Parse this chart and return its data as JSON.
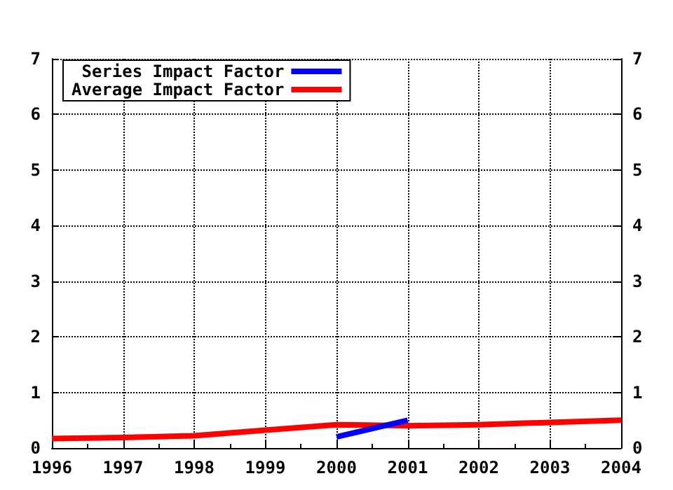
{
  "chart_data": {
    "type": "line",
    "x": [
      1996,
      1997,
      1998,
      1999,
      2000,
      2001,
      2002,
      2003,
      2004
    ],
    "series": [
      {
        "name": "Series Impact Factor",
        "color": "#0000ff",
        "x": [
          2000,
          2001
        ],
        "values": [
          0.2,
          0.5
        ]
      },
      {
        "name": "Average Impact Factor",
        "color": "#ff0000",
        "values": [
          0.17,
          0.19,
          0.22,
          0.32,
          0.42,
          0.4,
          0.42,
          0.46,
          0.5
        ]
      }
    ],
    "xlim": [
      1996,
      2004
    ],
    "xticks": [
      1996,
      1997,
      1998,
      1999,
      2000,
      2001,
      2002,
      2003,
      2004
    ],
    "ylim": [
      0,
      7
    ],
    "yticks": [
      0,
      1,
      2,
      3,
      4,
      5,
      6,
      7
    ],
    "y2lim": [
      0,
      7
    ],
    "y2ticks": [
      0,
      1,
      2,
      3,
      4,
      5,
      6,
      7
    ],
    "grid": true,
    "legend": "top left",
    "marker": "none",
    "line_style": "solid"
  }
}
